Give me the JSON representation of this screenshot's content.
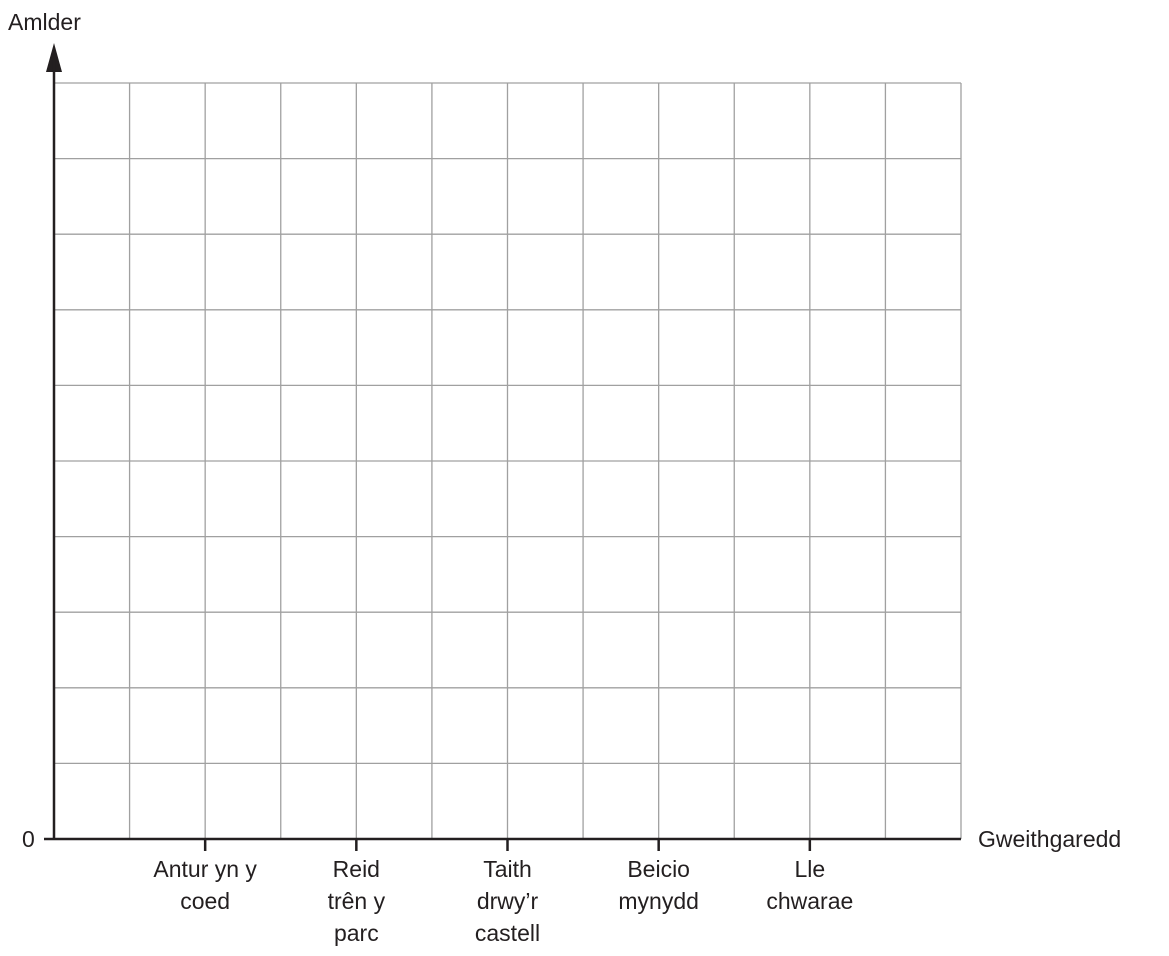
{
  "chart_data": {
    "type": "bar",
    "y_label": "Amlder",
    "x_label": "Gweithgaredd",
    "categories": [
      "Antur yn y\ncoed",
      "Reid\ntrên y\nparc",
      "Taith\ndrwy’r\ncastell",
      "Beicio\nmynydd",
      "Lle\nchwarae"
    ],
    "yticks": [
      0
    ],
    "grid": true
  }
}
